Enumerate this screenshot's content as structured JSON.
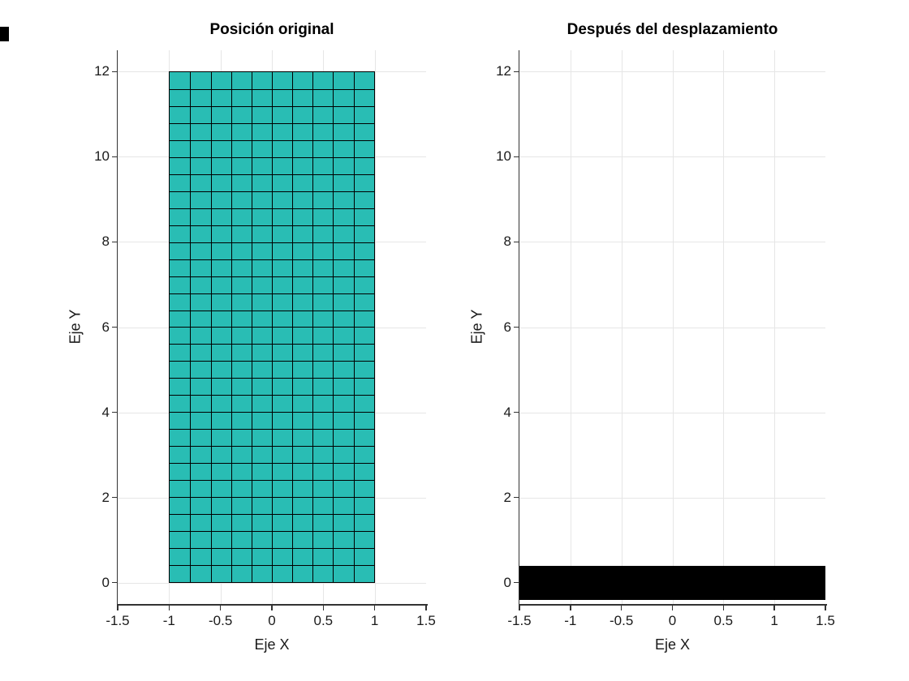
{
  "chart_data": [
    {
      "type": "area",
      "title": "Posición original",
      "xlabel": "Eje X",
      "ylabel": "Eje Y",
      "xlim": [
        -1.5,
        1.5
      ],
      "ylim": [
        -0.5,
        12.5
      ],
      "xticks": [
        -1.5,
        -1,
        -0.5,
        0,
        0.5,
        1,
        1.5
      ],
      "xtick_labels": [
        "-1.5",
        "-1",
        "-0.5",
        "0",
        "0.5",
        "1",
        "1.5"
      ],
      "yticks": [
        0,
        2,
        4,
        6,
        8,
        10,
        12
      ],
      "ytick_labels": [
        "0",
        "2",
        "4",
        "6",
        "8",
        "10",
        "12"
      ],
      "grid": true,
      "patch": {
        "description": "teal rectangular membrane with black mesh grid",
        "x_range": [
          -1,
          1
        ],
        "y_range": [
          0,
          12
        ],
        "mesh_cols": 10,
        "mesh_rows": 30,
        "facecolor": "#29bdb4",
        "edgecolor": "#000000"
      }
    },
    {
      "type": "area",
      "title": "Después del desplazamiento",
      "xlabel": "Eje X",
      "ylabel": "Eje Y",
      "xlim": [
        -1.5,
        1.5
      ],
      "ylim": [
        -0.5,
        12.5
      ],
      "xticks": [
        -1.5,
        -1,
        -0.5,
        0,
        0.5,
        1,
        1.5
      ],
      "xtick_labels": [
        "-1.5",
        "-1",
        "-0.5",
        "0",
        "0.5",
        "1",
        "1.5"
      ],
      "yticks": [
        0,
        2,
        4,
        6,
        8,
        10,
        12
      ],
      "ytick_labels": [
        "0",
        "2",
        "4",
        "6",
        "8",
        "10",
        "12"
      ],
      "grid": true,
      "patch": {
        "description": "flattened black membrane after displacement",
        "x_range": [
          -1.5,
          1.5
        ],
        "y_range": [
          -0.4,
          0.4
        ],
        "mesh_cols": 1,
        "mesh_rows": 1,
        "facecolor": "#000000",
        "edgecolor": "#000000"
      }
    }
  ],
  "style": {
    "background": "#ffffff",
    "grid_color": "#e6e6e6",
    "axis_color": "#333333",
    "tick_color": "#333333",
    "text_color": "#1a1a1a"
  }
}
